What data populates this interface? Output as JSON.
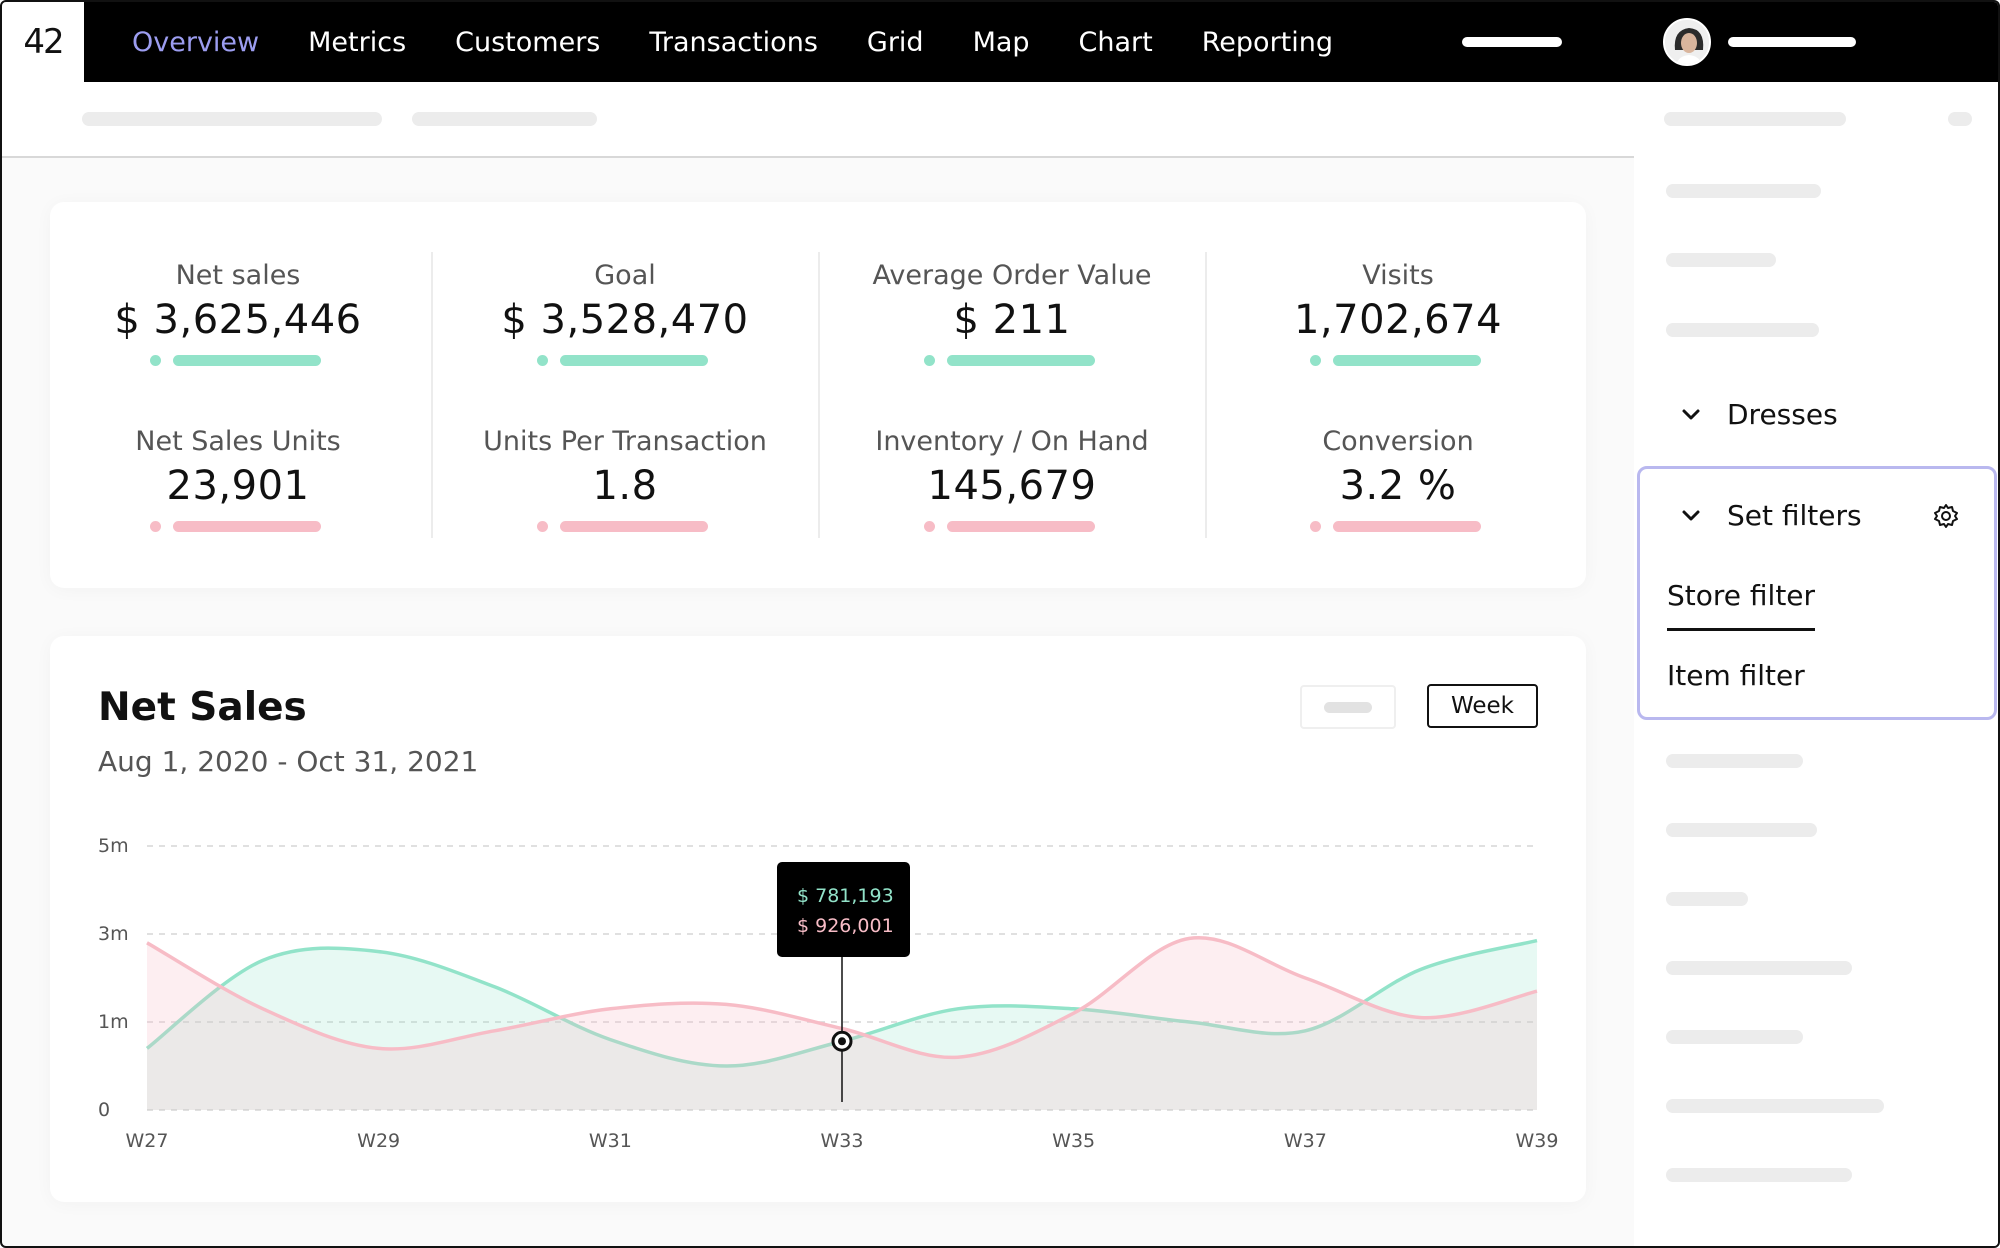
{
  "app": {
    "logo": "42"
  },
  "nav": {
    "items": [
      "Overview",
      "Metrics",
      "Customers",
      "Transactions",
      "Grid",
      "Map",
      "Chart",
      "Reporting"
    ],
    "active": "Overview"
  },
  "kpis": [
    {
      "label": "Net sales",
      "value": "$ 3,625,446",
      "bar": "green"
    },
    {
      "label": "Goal",
      "value": "$ 3,528,470",
      "bar": "green"
    },
    {
      "label": "Average Order Value",
      "value": "$ 211",
      "bar": "green"
    },
    {
      "label": "Visits",
      "value": "1,702,674",
      "bar": "green"
    },
    {
      "label": "Net Sales Units",
      "value": "23,901",
      "bar": "pink"
    },
    {
      "label": "Units Per Transaction",
      "value": "1.8",
      "bar": "pink"
    },
    {
      "label": "Inventory / On Hand",
      "value": "145,679",
      "bar": "pink"
    },
    {
      "label": "Conversion",
      "value": "3.2 %",
      "bar": "pink"
    }
  ],
  "chart_panel": {
    "title": "Net Sales",
    "date_range": "Aug 1, 2020 - Oct 31, 2021",
    "period_button": "Week"
  },
  "sidebar": {
    "group": "Dresses",
    "filters_title": "Set filters",
    "filters": [
      "Store filter",
      "Item filter"
    ],
    "active_filter": "Store filter"
  },
  "colors": {
    "accent": "#9c9df0",
    "green_series": "#92e3c9",
    "pink_series": "#f7bcc6",
    "nav_bg": "#000000"
  },
  "icons": {
    "group_toggle": "chevron-down-icon",
    "filters_toggle": "chevron-down-icon",
    "filters_settings": "gear-icon"
  },
  "chart_data": {
    "type": "area",
    "x_tick_labels": [
      "W27",
      "W29",
      "W31",
      "W33",
      "W35",
      "W37",
      "W39"
    ],
    "y_tick_labels": [
      "0",
      "1m",
      "3m",
      "5m"
    ],
    "ylim": [
      0,
      5000000
    ],
    "grid": true,
    "series": [
      {
        "color": "#92e3c9",
        "x": [
          27,
          28,
          29,
          30,
          31,
          32,
          33,
          34,
          35,
          36,
          37,
          38,
          39
        ],
        "values": [
          700000,
          2400000,
          2600000,
          1800000,
          800000,
          500000,
          781193,
          1300000,
          1300000,
          1000000,
          900000,
          2200000,
          2850000
        ]
      },
      {
        "color": "#f7bcc6",
        "x": [
          27,
          28,
          29,
          30,
          31,
          32,
          33,
          34,
          35,
          36,
          37,
          38,
          39
        ],
        "values": [
          2800000,
          1300000,
          700000,
          900000,
          1300000,
          1400000,
          926001,
          600000,
          1200000,
          2900000,
          2000000,
          1100000,
          1700000
        ]
      }
    ],
    "tooltip": {
      "x": 33,
      "lines": [
        "$ 781,193",
        "$ 926,001"
      ]
    }
  }
}
